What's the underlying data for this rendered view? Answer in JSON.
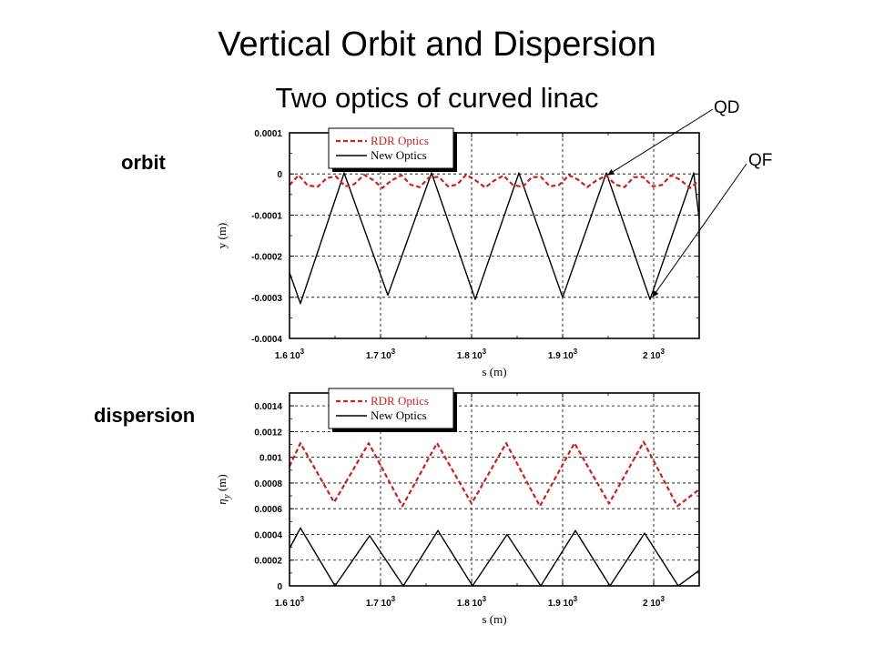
{
  "slide": {
    "title": "Vertical Orbit and Dispersion",
    "subtitle": "Two optics of curved linac",
    "label_orbit": "orbit",
    "label_dispersion": "dispersion",
    "annotation_qd": "QD",
    "annotation_qf": "QF"
  },
  "chart_data": [
    {
      "type": "line",
      "xlabel": "s (m)",
      "ylabel": "y (m)",
      "xlim": [
        1600,
        2050
      ],
      "ylim": [
        -0.0004,
        0.0001
      ],
      "xticks": [
        1600,
        1700,
        1800,
        1900,
        2000
      ],
      "xtick_labels": [
        {
          "mant": "1.6 10",
          "exp": "3"
        },
        {
          "mant": "1.7 10",
          "exp": "3"
        },
        {
          "mant": "1.8 10",
          "exp": "3"
        },
        {
          "mant": "1.9 10",
          "exp": "3"
        },
        {
          "mant": "2 10",
          "exp": "3"
        }
      ],
      "yticks": [
        0.0001,
        0,
        -0.0001,
        -0.0002,
        -0.0003,
        -0.0004
      ],
      "ytick_labels": [
        "0.0001",
        "0",
        "-0.0001",
        "-0.0002",
        "-0.0003",
        "-0.0004"
      ],
      "grid": true,
      "legend": "top-left",
      "series": [
        {
          "name": "RDR Optics",
          "color": "#cc1f1f",
          "dash": true,
          "x": [
            1600,
            1610,
            1620,
            1631,
            1641,
            1651,
            1661,
            1671,
            1682,
            1692,
            1702,
            1712,
            1723,
            1733,
            1743,
            1753,
            1764,
            1774,
            1784,
            1794,
            1804,
            1815,
            1825,
            1835,
            1845,
            1856,
            1866,
            1876,
            1886,
            1896,
            1907,
            1917,
            1927,
            1937,
            1948,
            1958,
            1968,
            1978,
            1988,
            1999,
            2009,
            2019,
            2029,
            2040,
            2050
          ],
          "y": [
            -2.7e-05,
            -3e-06,
            -2.8e-05,
            -3.1e-05,
            -1e-05,
            -6e-06,
            -3e-05,
            -2.5e-05,
            -2e-06,
            -1.5e-05,
            -3.4e-05,
            -1.6e-05,
            -3e-06,
            -2.6e-05,
            -3.2e-05,
            -9e-06,
            -7e-06,
            -3e-05,
            -2.6e-05,
            -2e-06,
            -1.5e-05,
            -3.3e-05,
            -1.6e-05,
            -4e-06,
            -2.6e-05,
            -3.2e-05,
            -8e-06,
            -7e-06,
            -3e-05,
            -2.7e-05,
            -3e-06,
            -1.4e-05,
            -3.2e-05,
            -1.6e-05,
            -4e-06,
            -2.6e-05,
            -3.2e-05,
            -8e-06,
            -7e-06,
            -3e-05,
            -2.7e-05,
            -3e-06,
            -1.4e-05,
            -3.4e-05,
            -1.6e-05
          ]
        },
        {
          "name": "New Optics",
          "color": "#000000",
          "dash": false,
          "x": [
            1600,
            1612,
            1660,
            1708,
            1756,
            1804,
            1852,
            1900,
            1948,
            1996,
            2044,
            2050
          ],
          "y": [
            -0.00024,
            -0.000315,
            2.5e-06,
            -0.000295,
            2.5e-06,
            -0.000305,
            2.5e-06,
            -0.0003,
            2.5e-06,
            -0.000305,
            2.5e-06,
            -0.00011
          ]
        }
      ]
    },
    {
      "type": "line",
      "xlabel": "s (m)",
      "ylabel": "η_y (m)",
      "ylabel_symbol": "η",
      "ylabel_sub": "y",
      "ylabel_unit": "(m)",
      "xlim": [
        1600,
        2050
      ],
      "ylim": [
        0,
        0.0015
      ],
      "xticks": [
        1600,
        1700,
        1800,
        1900,
        2000
      ],
      "xtick_labels": [
        {
          "mant": "1.6 10",
          "exp": "3"
        },
        {
          "mant": "1.7 10",
          "exp": "3"
        },
        {
          "mant": "1.8 10",
          "exp": "3"
        },
        {
          "mant": "1.9 10",
          "exp": "3"
        },
        {
          "mant": "2 10",
          "exp": "3"
        }
      ],
      "yticks": [
        0.0014,
        0.0012,
        0.001,
        0.0008,
        0.0006,
        0.0004,
        0.0002,
        0
      ],
      "ytick_labels": [
        "0.0014",
        "0.0012",
        "0.001",
        "0.0008",
        "0.0006",
        "0.0004",
        "0.0002",
        "0"
      ],
      "grid": true,
      "legend": "top-left",
      "series": [
        {
          "name": "RDR Optics",
          "color": "#cc1f1f",
          "dash": true,
          "x": [
            1600,
            1612,
            1649,
            1687,
            1724,
            1762,
            1800,
            1838,
            1875,
            1913,
            1951,
            1989,
            2026,
            2050
          ],
          "y": [
            0.00093,
            0.00111,
            0.00065,
            0.00111,
            0.00062,
            0.00111,
            0.00064,
            0.00111,
            0.00062,
            0.00111,
            0.00064,
            0.00112,
            0.00062,
            0.00075
          ]
        },
        {
          "name": "New Optics",
          "color": "#000000",
          "dash": false,
          "x": [
            1600,
            1612,
            1650,
            1688,
            1725,
            1763,
            1801,
            1839,
            1876,
            1914,
            1952,
            1990,
            2027,
            2050
          ],
          "y": [
            0.00029,
            0.00045,
            0.0,
            0.00039,
            0.0,
            0.00043,
            0.0,
            0.0004,
            0.0,
            0.00043,
            0.0,
            0.00041,
            0.0,
            0.00012
          ]
        }
      ]
    }
  ]
}
